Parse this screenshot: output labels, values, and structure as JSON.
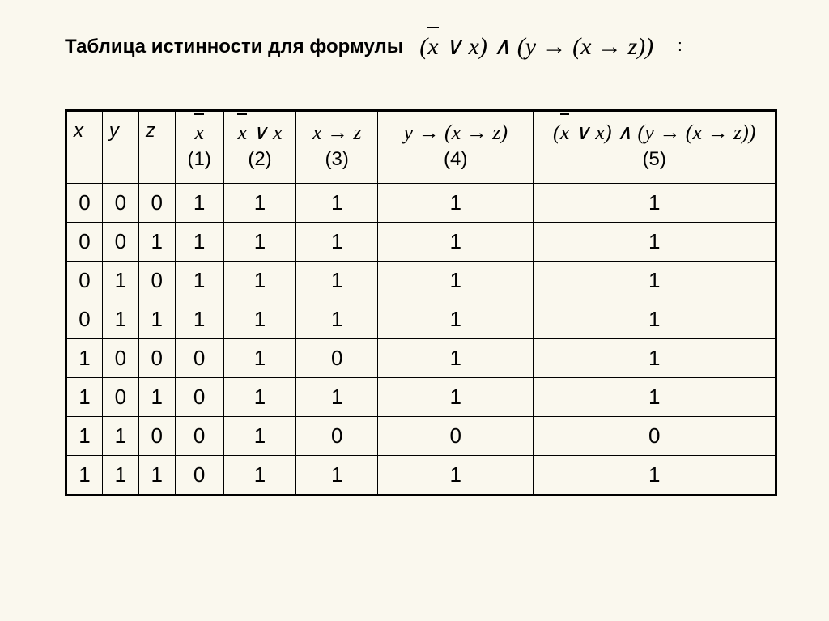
{
  "title": "Таблица истинности для формулы",
  "formula_main": "(x̄ ∨ x) ∧ (y → (x → z))",
  "colon": ":",
  "headers": {
    "x": "x",
    "y": "y",
    "z": "z",
    "col1_num": "(1)",
    "col2_num": "(2)",
    "col3_num": "(3)",
    "col4_num": "(4)",
    "col5_num": "(5)"
  },
  "rows": [
    [
      "0",
      "0",
      "0",
      "1",
      "1",
      "1",
      "1",
      "1"
    ],
    [
      "0",
      "0",
      "1",
      "1",
      "1",
      "1",
      "1",
      "1"
    ],
    [
      "0",
      "1",
      "0",
      "1",
      "1",
      "1",
      "1",
      "1"
    ],
    [
      "0",
      "1",
      "1",
      "1",
      "1",
      "1",
      "1",
      "1"
    ],
    [
      "1",
      "0",
      "0",
      "0",
      "1",
      "0",
      "1",
      "1"
    ],
    [
      "1",
      "0",
      "1",
      "0",
      "1",
      "1",
      "1",
      "1"
    ],
    [
      "1",
      "1",
      "0",
      "0",
      "1",
      "0",
      "0",
      "0"
    ],
    [
      "1",
      "1",
      "1",
      "0",
      "1",
      "1",
      "1",
      "1"
    ]
  ],
  "colors": {
    "background": "#faf8ee",
    "text": "#000000",
    "border": "#000000"
  }
}
